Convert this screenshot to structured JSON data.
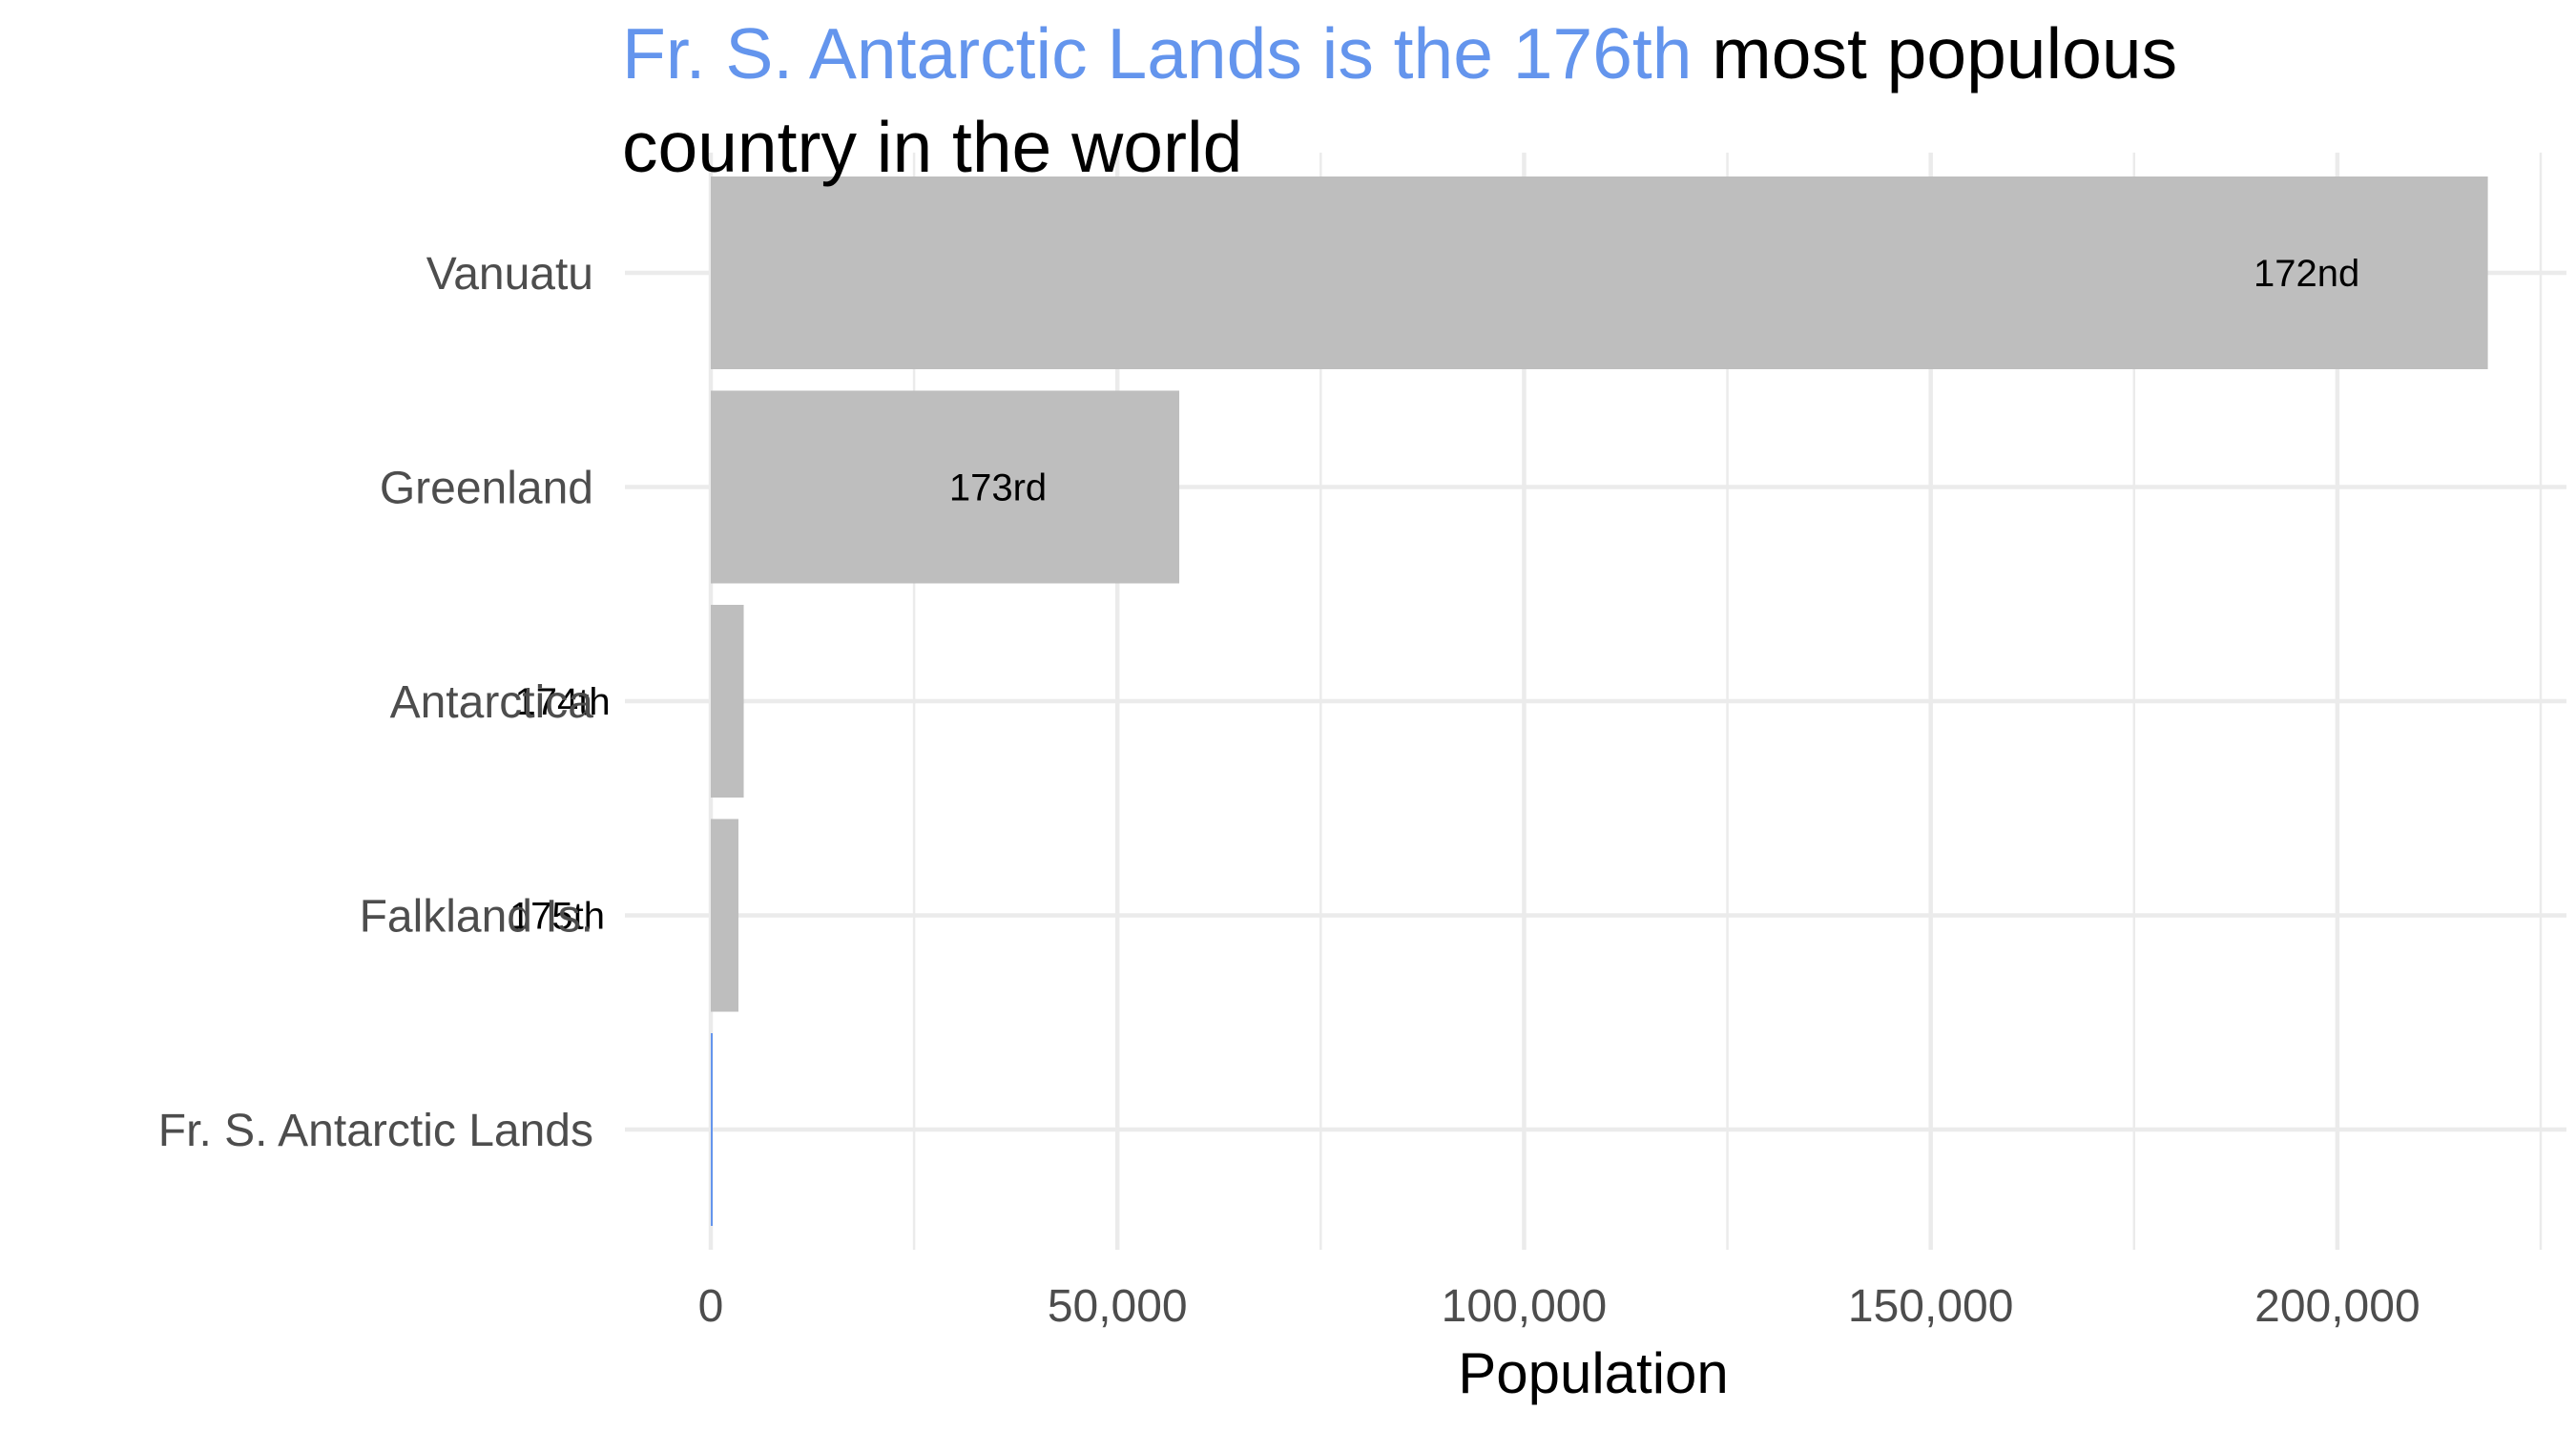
{
  "chart_data": {
    "type": "bar",
    "orientation": "horizontal",
    "title": {
      "highlight": "Fr. S. Antarctic Lands is the 176th",
      "rest_line1": " most populous",
      "rest_line2": "country in the world"
    },
    "xlabel": "Population",
    "ylabel": "",
    "xlim": [
      0,
      225000
    ],
    "x_ticks": [
      0,
      50000,
      100000,
      150000,
      200000
    ],
    "x_tick_labels": [
      "0",
      "50,000",
      "100,000",
      "150,000",
      "200,000"
    ],
    "grid": true,
    "legend": "none",
    "categories": [
      "Vanuatu",
      "Greenland",
      "Antarctica",
      "Falkland Is.",
      "Fr. S. Antarctic Lands"
    ],
    "values": [
      218500,
      57600,
      4050,
      3400,
      140
    ],
    "data_labels": [
      "172nd",
      "173rd",
      "174th",
      "175th",
      ""
    ],
    "highlight_category": "Fr. S. Antarctic Lands",
    "colors": {
      "bar": "#bebebe",
      "highlight": "#6495ed",
      "grid": "#ebebeb",
      "title": "#000000",
      "tick_text": "#4d4d4d"
    }
  }
}
